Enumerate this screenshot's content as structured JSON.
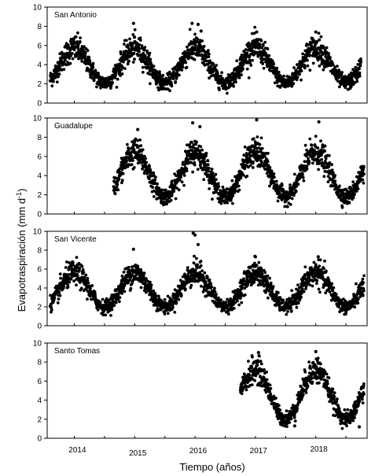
{
  "chart_data": {
    "type": "scatter",
    "xlabel": "Tiempo (años)",
    "ylabel": "Evapotraspiración (mm d",
    "ylabel_sup": "-1",
    "ylabel_close": ")",
    "x_ticks": [
      "2014",
      "2015",
      "2016",
      "2017",
      "2018"
    ],
    "y_ticks": [
      "0",
      "2",
      "4",
      "6",
      "8",
      "10"
    ],
    "ylim": [
      0,
      10
    ],
    "xlim_years": [
      2013.55,
      2018.85
    ],
    "marker_color": "#000000",
    "panels": [
      {
        "name": "San Antonio",
        "x_start": 2013.6,
        "x_end": 2018.75,
        "mean": 3.9,
        "amplitude": 1.8,
        "peak_phase": 0.0,
        "noise": 0.7,
        "outliers": [
          [
            2014.98,
            8.3
          ],
          [
            2015.95,
            8.3
          ],
          [
            2016.05,
            8.2
          ],
          [
            2016.1,
            7.5
          ],
          [
            2017.02,
            7.4
          ],
          [
            2018.0,
            7.4
          ]
        ]
      },
      {
        "name": "Guadalupe",
        "x_start": 2014.65,
        "x_end": 2018.8,
        "mean": 4.1,
        "amplitude": 2.3,
        "peak_phase": 0.0,
        "noise": 0.75,
        "outliers": [
          [
            2015.96,
            9.5
          ],
          [
            2016.08,
            9.1
          ],
          [
            2017.02,
            9.8
          ],
          [
            2018.05,
            9.6
          ],
          [
            2015.05,
            8.8
          ]
        ]
      },
      {
        "name": "San Vicente",
        "x_start": 2013.6,
        "x_end": 2018.8,
        "mean": 3.8,
        "amplitude": 1.8,
        "peak_phase": 0.0,
        "noise": 0.65,
        "outliers": [
          [
            2015.97,
            9.8
          ],
          [
            2016.0,
            9.6
          ],
          [
            2016.05,
            8.6
          ],
          [
            2014.98,
            8.1
          ],
          [
            2017.0,
            7.3
          ],
          [
            2018.04,
            7.3
          ]
        ]
      },
      {
        "name": "Santo Tomas",
        "x_start": 2016.75,
        "x_end": 2018.8,
        "mean": 4.6,
        "amplitude": 2.6,
        "peak_phase": 0.0,
        "noise": 0.7,
        "outliers": [
          [
            2017.05,
            9.0
          ],
          [
            2018.0,
            9.1
          ],
          [
            2017.65,
            1.3
          ],
          [
            2018.72,
            1.2
          ]
        ]
      }
    ]
  }
}
